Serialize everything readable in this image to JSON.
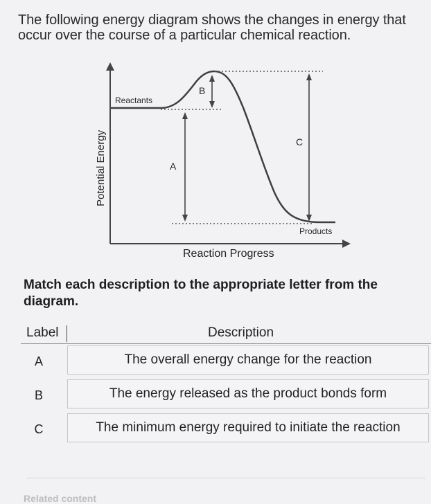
{
  "intro_text": "The following energy diagram shows the changes in energy that occur over the course of a particular chemical reaction.",
  "diagram": {
    "y_axis_label": "Potential Energy",
    "x_axis_label": "Reaction Progress",
    "reactants_label": "Reactants",
    "products_label": "Products",
    "marker_a": "A",
    "marker_b": "B",
    "marker_c": "C"
  },
  "match_prompt": "Match each description to the appropriate letter from the diagram.",
  "table": {
    "label_header": "Label",
    "description_header": "Description",
    "rows": [
      {
        "label": "A",
        "description": "The overall energy change for the reaction"
      },
      {
        "label": "B",
        "description": "The energy released as the product bonds form"
      },
      {
        "label": "C",
        "description": "The minimum energy required to initiate the reaction"
      }
    ]
  },
  "footer": {
    "related_content": "Related content"
  }
}
